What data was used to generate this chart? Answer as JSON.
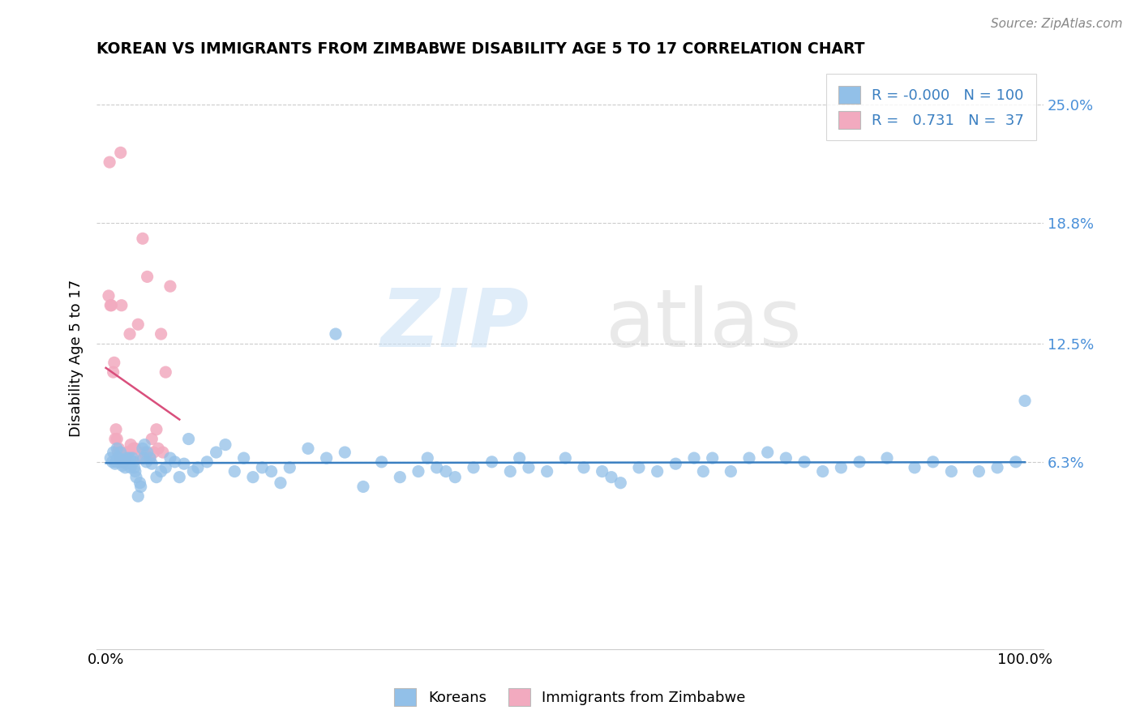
{
  "title": "KOREAN VS IMMIGRANTS FROM ZIMBABWE DISABILITY AGE 5 TO 17 CORRELATION CHART",
  "source": "Source: ZipAtlas.com",
  "ylabel": "Disability Age 5 to 17",
  "legend_r1": "-0.000",
  "legend_n1": "100",
  "legend_r2": "0.731",
  "legend_n2": "37",
  "blue_color": "#92C0E8",
  "pink_color": "#F2AABF",
  "blue_line_color": "#3A7FC1",
  "pink_line_color": "#D94F7C",
  "ytick_vals": [
    6.3,
    12.5,
    18.8,
    25.0
  ],
  "ytick_labels": [
    "6.3%",
    "12.5%",
    "18.8%",
    "25.0%"
  ],
  "xlim": [
    -1,
    102
  ],
  "ylim": [
    -3.5,
    27
  ],
  "koreans_x": [
    0.5,
    0.7,
    0.8,
    1.0,
    1.2,
    1.4,
    1.5,
    1.6,
    1.8,
    2.0,
    2.2,
    2.3,
    2.5,
    2.7,
    2.9,
    3.0,
    3.2,
    3.5,
    3.7,
    3.8,
    4.0,
    4.2,
    4.5,
    4.8,
    5.0,
    5.5,
    6.0,
    6.5,
    7.0,
    7.5,
    8.0,
    8.5,
    9.0,
    9.5,
    10.0,
    11.0,
    12.0,
    13.0,
    14.0,
    15.0,
    16.0,
    17.0,
    18.0,
    19.0,
    20.0,
    22.0,
    24.0,
    25.0,
    26.0,
    28.0,
    30.0,
    32.0,
    34.0,
    35.0,
    36.0,
    37.0,
    38.0,
    40.0,
    42.0,
    44.0,
    45.0,
    46.0,
    48.0,
    50.0,
    52.0,
    54.0,
    55.0,
    56.0,
    58.0,
    60.0,
    62.0,
    64.0,
    65.0,
    66.0,
    68.0,
    70.0,
    72.0,
    74.0,
    76.0,
    78.0,
    80.0,
    82.0,
    85.0,
    88.0,
    90.0,
    92.0,
    95.0,
    97.0,
    99.0,
    100.0,
    1.1,
    1.3,
    1.9,
    2.1,
    2.4,
    2.6,
    3.1,
    3.3,
    4.1,
    4.4
  ],
  "koreans_y": [
    6.5,
    6.3,
    6.8,
    6.2,
    7.0,
    6.5,
    6.3,
    6.8,
    6.1,
    6.4,
    6.2,
    6.5,
    6.3,
    6.0,
    6.5,
    6.3,
    5.8,
    4.5,
    5.2,
    5.0,
    7.0,
    7.2,
    6.8,
    6.5,
    6.2,
    5.5,
    5.8,
    6.0,
    6.5,
    6.3,
    5.5,
    6.2,
    7.5,
    5.8,
    6.0,
    6.3,
    6.8,
    7.2,
    5.8,
    6.5,
    5.5,
    6.0,
    5.8,
    5.2,
    6.0,
    7.0,
    6.5,
    13.0,
    6.8,
    5.0,
    6.3,
    5.5,
    5.8,
    6.5,
    6.0,
    5.8,
    5.5,
    6.0,
    6.3,
    5.8,
    6.5,
    6.0,
    5.8,
    6.5,
    6.0,
    5.8,
    5.5,
    5.2,
    6.0,
    5.8,
    6.2,
    6.5,
    5.8,
    6.5,
    5.8,
    6.5,
    6.8,
    6.5,
    6.3,
    5.8,
    6.0,
    6.3,
    6.5,
    6.0,
    6.3,
    5.8,
    5.8,
    6.0,
    6.3,
    9.5,
    6.3,
    6.5,
    6.3,
    6.0,
    6.3,
    6.5,
    6.0,
    5.5,
    6.5,
    6.3
  ],
  "zimbabwe_x": [
    0.3,
    0.4,
    0.5,
    0.6,
    0.8,
    0.9,
    1.0,
    1.1,
    1.2,
    1.3,
    1.4,
    1.5,
    1.6,
    1.7,
    1.8,
    2.0,
    2.2,
    2.3,
    2.5,
    2.6,
    2.7,
    3.0,
    3.2,
    3.5,
    3.8,
    4.0,
    4.2,
    4.5,
    4.8,
    5.0,
    5.2,
    5.5,
    5.7,
    6.0,
    6.2,
    6.5,
    7.0
  ],
  "zimbabwe_y": [
    15.0,
    22.0,
    14.5,
    14.5,
    11.0,
    11.5,
    7.5,
    8.0,
    7.5,
    6.8,
    7.0,
    6.5,
    22.5,
    14.5,
    6.3,
    6.3,
    6.5,
    6.8,
    6.8,
    13.0,
    7.2,
    7.0,
    7.0,
    13.5,
    6.5,
    18.0,
    6.8,
    16.0,
    6.5,
    7.5,
    6.8,
    8.0,
    7.0,
    13.0,
    6.8,
    11.0,
    15.5
  ],
  "zimbabwe_trend_x": [
    0.0,
    7.5
  ],
  "zimbabwe_trend_y_start": 3.5,
  "zimbabwe_trend_slope": 3.8
}
